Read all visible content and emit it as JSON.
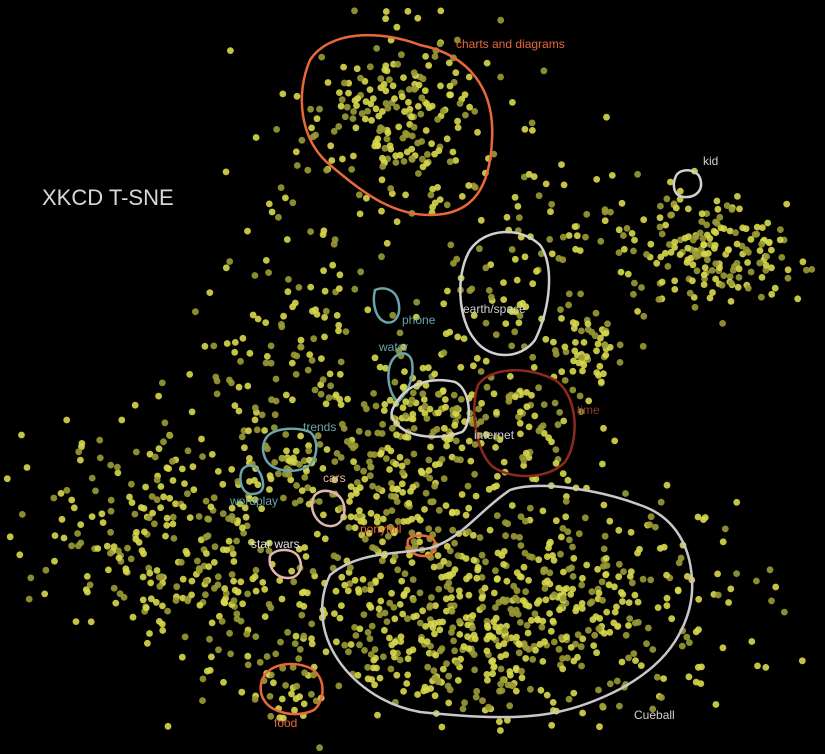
{
  "chart_data": {
    "type": "scatter",
    "title": "XKCD T-SNE",
    "xlabel": "",
    "ylabel": "",
    "grid": false,
    "colors": {
      "background": "#000000",
      "point": "#d8d84e",
      "point_dim": "#9a9a36",
      "title": "#d8d8d8",
      "white_outline": "#d0d0d0",
      "orange_outline": "#e8683c",
      "teal_outline": "#6aa3a8",
      "brown_outline": "#8a2a1e",
      "pink_outline": "#e0b8b0"
    },
    "clusters": [
      {
        "label": "charts and diagrams",
        "color": "orange"
      },
      {
        "label": "kid",
        "color": "white"
      },
      {
        "label": "earth/space",
        "color": "white"
      },
      {
        "label": "phone",
        "color": "teal"
      },
      {
        "label": "water",
        "color": "teal"
      },
      {
        "label": "time",
        "color": "brown"
      },
      {
        "label": "internet",
        "color": "white"
      },
      {
        "label": "trends",
        "color": "teal"
      },
      {
        "label": "wordplay",
        "color": "teal"
      },
      {
        "label": "cars",
        "color": "pink"
      },
      {
        "label": "ponytail",
        "color": "orange"
      },
      {
        "label": "star wars",
        "color": "white"
      },
      {
        "label": "food",
        "color": "orange"
      },
      {
        "label": "Cueball",
        "color": "white"
      }
    ]
  }
}
